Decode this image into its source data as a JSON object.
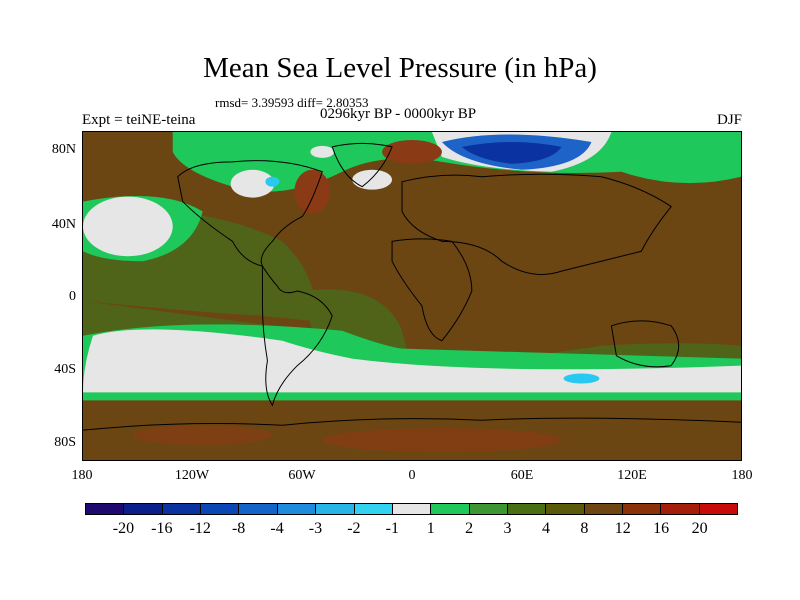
{
  "title": "Mean Sea Level Pressure (in hPa)",
  "stats": "rmsd= 3.39593  diff= 2.80353",
  "period": "0296kyr BP - 0000kyr BP",
  "experiment": "Expt = teiNE-teina",
  "season": "DJF",
  "lat_labels": [
    "80N",
    "40N",
    "0",
    "40S",
    "80S"
  ],
  "lon_labels": [
    "180",
    "120W",
    "60W",
    "0",
    "60E",
    "120E",
    "180"
  ],
  "colorbar": {
    "colors": [
      "#1e0a6e",
      "#0a1e8c",
      "#0a32a0",
      "#0a46b4",
      "#1464c8",
      "#1e8cdc",
      "#28b4e6",
      "#32d2f0",
      "#e6e6e6",
      "#1ec85a",
      "#3c9632",
      "#4b6e14",
      "#5a5a0a",
      "#6e4614",
      "#8c320a",
      "#a51e0a",
      "#c80a0a"
    ],
    "labels": [
      "-20",
      "-16",
      "-12",
      "-8",
      "-4",
      "-3",
      "-2",
      "-1",
      "1",
      "2",
      "3",
      "4",
      "8",
      "12",
      "16",
      "20"
    ]
  },
  "palette": {
    "brown": "#6b4613",
    "olive": "#4f6418",
    "green": "#1ec85a",
    "lightgray": "#e6e6e6",
    "cyan": "#28c8f0",
    "blue": "#1e64c8",
    "darkblue": "#0a32a0",
    "red": "#b43c14"
  }
}
